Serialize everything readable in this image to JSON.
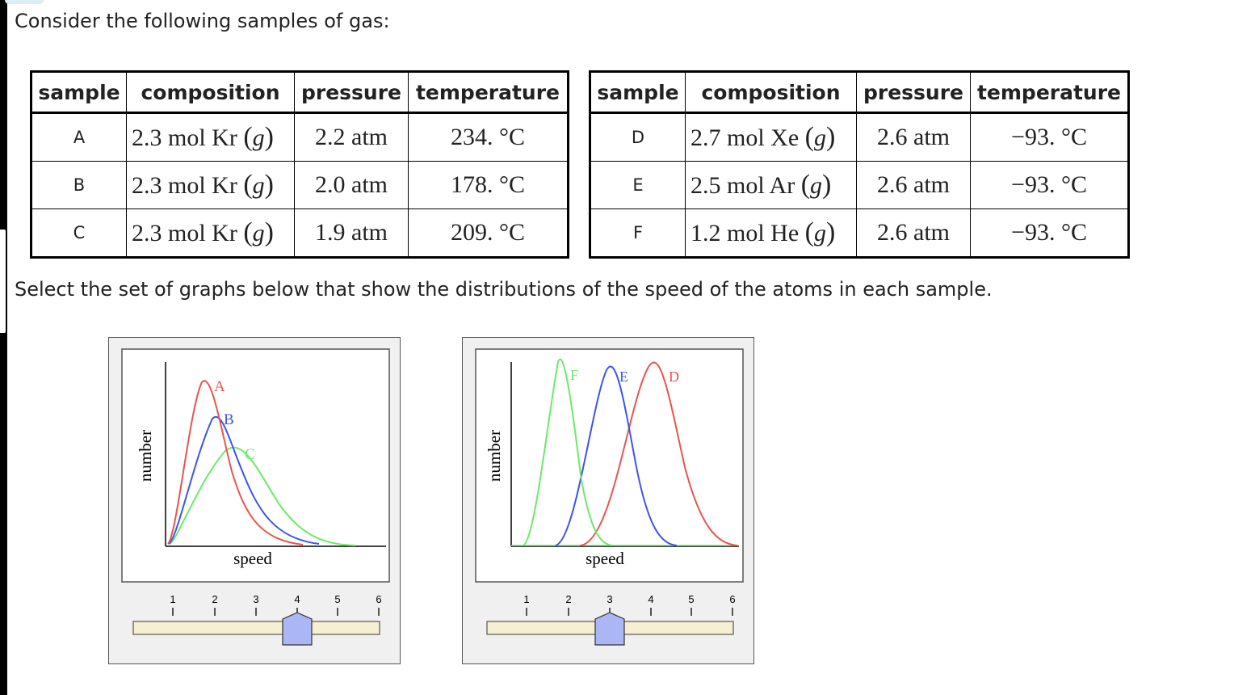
{
  "intro": "Consider the following samples of gas:",
  "prompt": "Select the set of graphs below that show the distributions of the speed of the atoms in each sample.",
  "table_headers": [
    "sample",
    "composition",
    "pressure",
    "temperature"
  ],
  "table1": [
    {
      "sample": "A",
      "amount": "2.3 mol",
      "gas": "Kr",
      "phase": "g",
      "pressure": "2.2 atm",
      "temperature": "234. °C"
    },
    {
      "sample": "B",
      "amount": "2.3 mol",
      "gas": "Kr",
      "phase": "g",
      "pressure": "2.0 atm",
      "temperature": "178. °C"
    },
    {
      "sample": "C",
      "amount": "2.3 mol",
      "gas": "Kr",
      "phase": "g",
      "pressure": "1.9 atm",
      "temperature": "209. °C"
    }
  ],
  "table2": [
    {
      "sample": "D",
      "amount": "2.7 mol",
      "gas": "Xe",
      "phase": "g",
      "pressure": "2.6 atm",
      "temperature": "−93. °C"
    },
    {
      "sample": "E",
      "amount": "2.5 mol",
      "gas": "Ar",
      "phase": "g",
      "pressure": "2.6 atm",
      "temperature": "−93. °C"
    },
    {
      "sample": "F",
      "amount": "1.2 mol",
      "gas": "He",
      "phase": "g",
      "pressure": "2.6 atm",
      "temperature": "−93. °C"
    }
  ],
  "graph1": {
    "ylabel": "number",
    "xlabel": "speed",
    "curve_labels": [
      "A",
      "B",
      "C"
    ],
    "colors": {
      "A": "#e8544f",
      "B": "#3d55e8",
      "C": "#6ee86a"
    },
    "slider_ticks": [
      "1",
      "2",
      "3",
      "4",
      "5",
      "6"
    ],
    "slider_value": 4
  },
  "graph2": {
    "ylabel": "number",
    "xlabel": "speed",
    "curve_labels": [
      "F",
      "E",
      "D"
    ],
    "colors": {
      "F": "#6ee86a",
      "E": "#3d55e8",
      "D": "#e8544f"
    },
    "slider_ticks": [
      "1",
      "2",
      "3",
      "4",
      "5",
      "6"
    ],
    "slider_value": 3
  }
}
